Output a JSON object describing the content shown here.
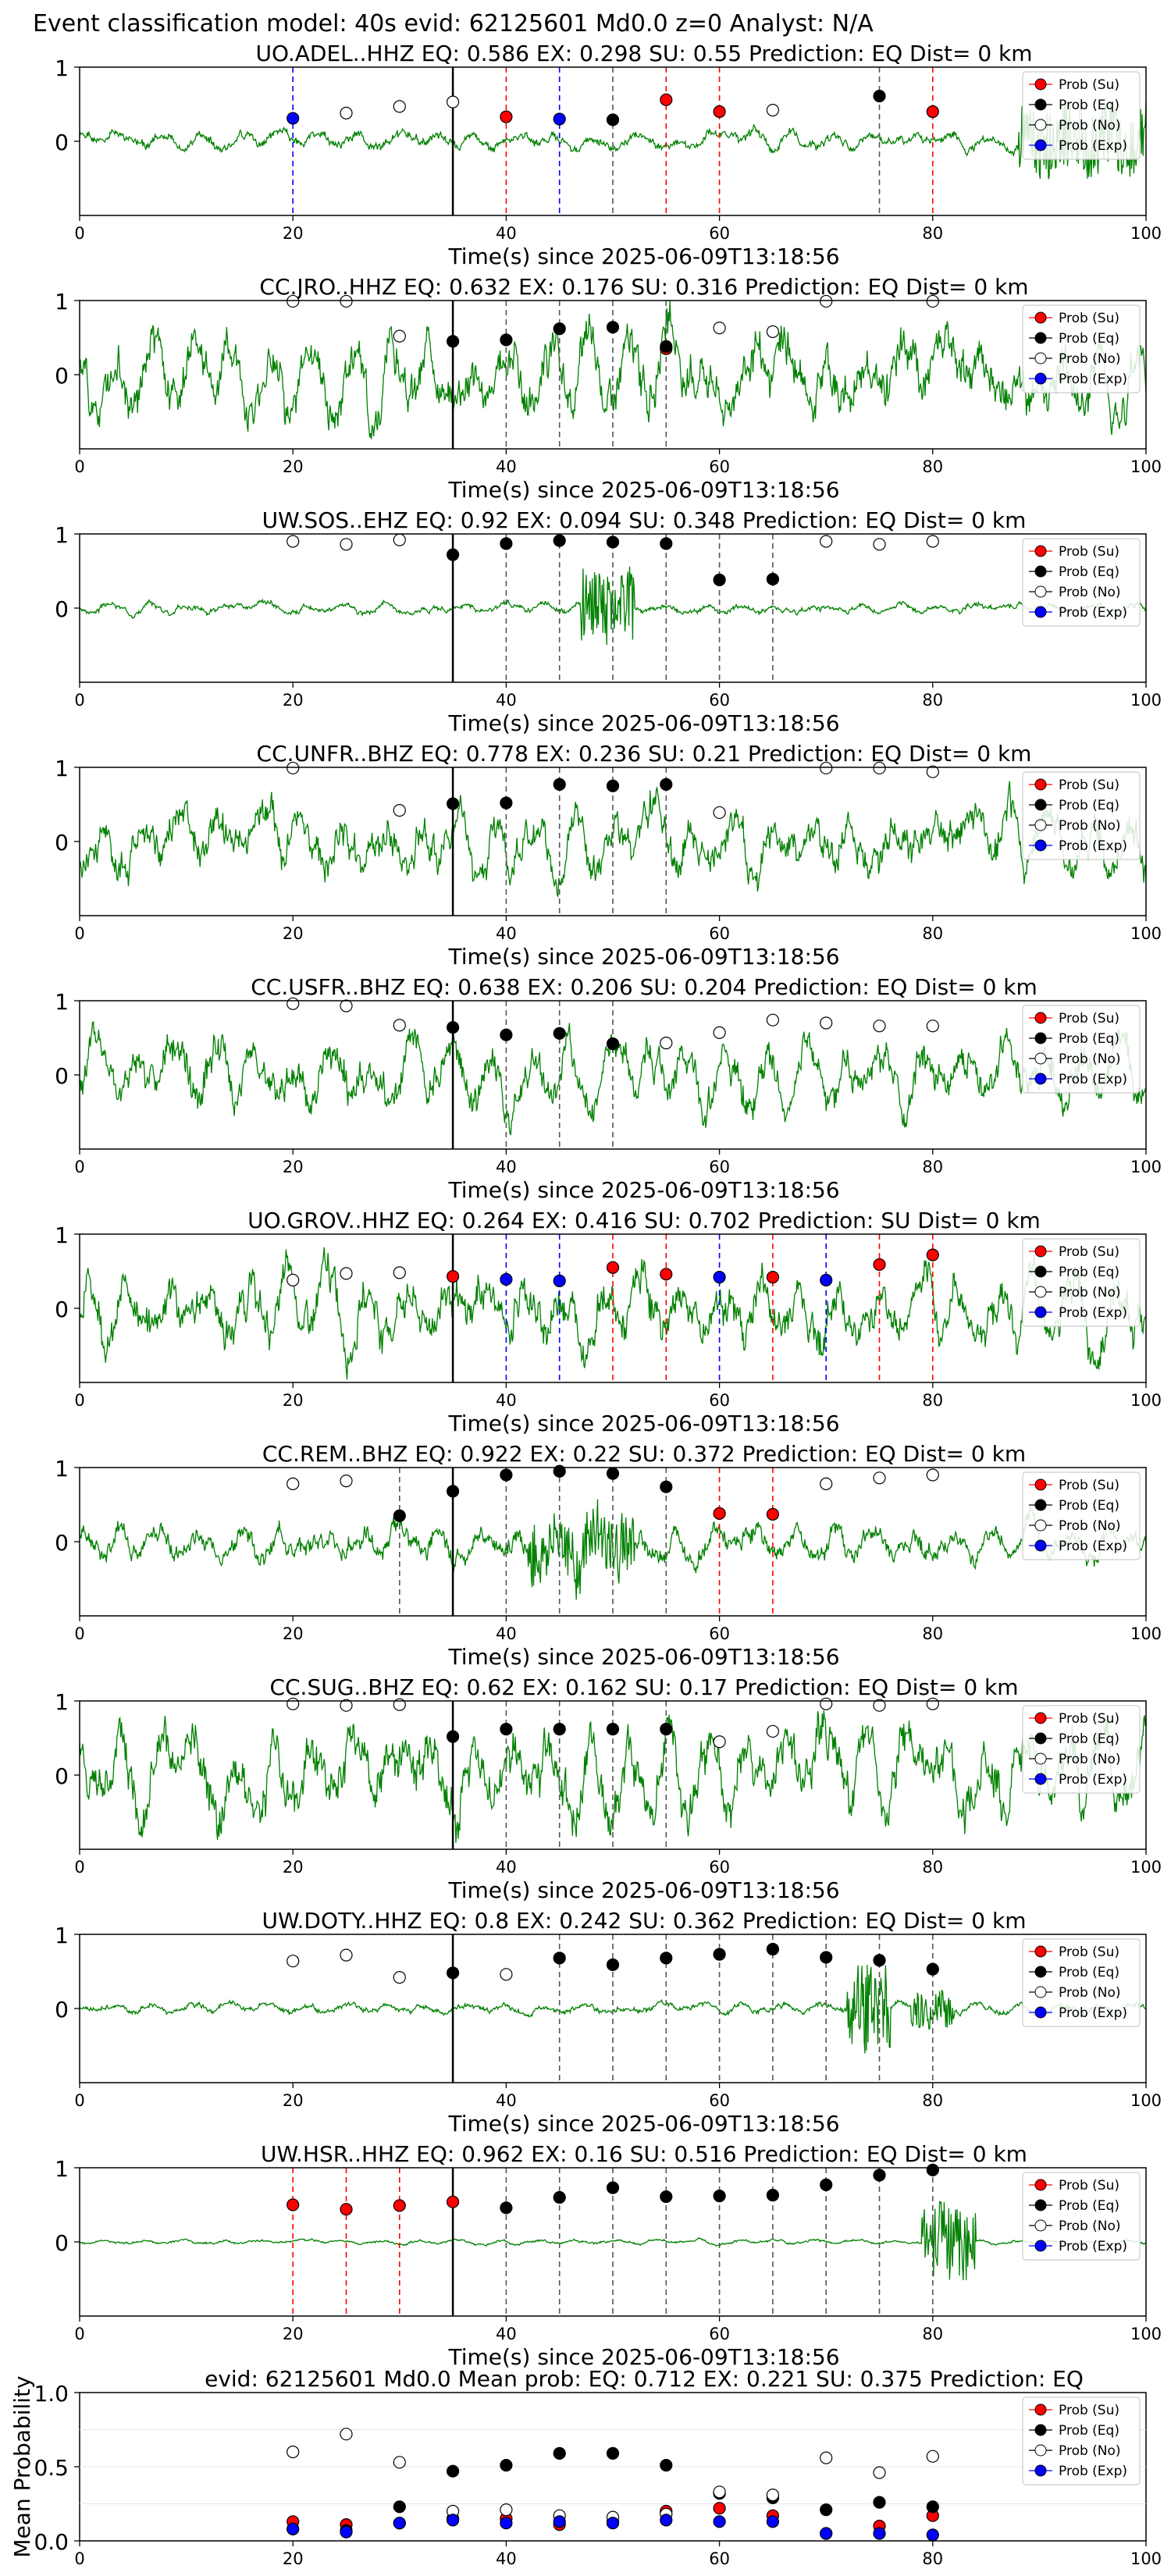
{
  "figure": {
    "suptitle": "Event classification model: 40s evid: 62125601 Md0.0 z=0 Analyst: N/A",
    "xlabel": "Time(s) since 2025-06-09T13:18:56",
    "legend": [
      "Prob (Su)",
      "Prob (Eq)",
      "Prob (No)",
      "Prob (Exp)"
    ],
    "colors": {
      "su": "#ff0000",
      "eq": "#000000",
      "no": "#ffffff",
      "exp": "#0000ff",
      "waveform": "#008000"
    }
  },
  "chart_data": [
    {
      "type": "line",
      "title": "UO.ADEL..HHZ   EQ: 0.586  EX: 0.298  SU: 0.55   Prediction: EQ    Dist= 0 km",
      "xlim": [
        0,
        100
      ],
      "ylim": [
        -1,
        1
      ],
      "xticks": [
        "0",
        "20",
        "40",
        "60",
        "80",
        "100"
      ],
      "yticks": [
        "1",
        "0"
      ],
      "pick_time": 35,
      "amp": 0.12,
      "burst": [
        [
          88,
          100,
          0.45
        ]
      ],
      "seed": 1,
      "points": [
        [
          20,
          "exp",
          0.31
        ],
        [
          25,
          "no",
          0.38
        ],
        [
          30,
          "no",
          0.47
        ],
        [
          35,
          "no",
          0.53
        ],
        [
          40,
          "su",
          0.33
        ],
        [
          45,
          "exp",
          0.3
        ],
        [
          50,
          "eq",
          0.29
        ],
        [
          55,
          "su",
          0.56
        ],
        [
          60,
          "su",
          0.4
        ],
        [
          65,
          "no",
          0.42
        ],
        [
          75,
          "eq",
          0.61
        ],
        [
          80,
          "su",
          0.4
        ]
      ],
      "vlines": [
        [
          20,
          "exp"
        ],
        [
          40,
          "su"
        ],
        [
          45,
          "exp"
        ],
        [
          50,
          "eq"
        ],
        [
          55,
          "su"
        ],
        [
          60,
          "su"
        ],
        [
          75,
          "eq"
        ],
        [
          80,
          "su"
        ]
      ]
    },
    {
      "type": "line",
      "title": "CC.JRO..HHZ   EQ: 0.632  EX: 0.176  SU: 0.316   Prediction: EQ    Dist= 0 km",
      "xlim": [
        0,
        100
      ],
      "ylim": [
        -1,
        1
      ],
      "xticks": [
        "0",
        "20",
        "40",
        "60",
        "80",
        "100"
      ],
      "yticks": [
        "1",
        "0"
      ],
      "pick_time": 35,
      "amp": 0.55,
      "burst": [],
      "seed": 2,
      "points": [
        [
          20,
          "no",
          0.99
        ],
        [
          25,
          "no",
          0.99
        ],
        [
          30,
          "no",
          0.52
        ],
        [
          35,
          "eq",
          0.45
        ],
        [
          40,
          "eq",
          0.47
        ],
        [
          45,
          "eq",
          0.62
        ],
        [
          50,
          "eq",
          0.64
        ],
        [
          55,
          "su",
          0.35
        ],
        [
          55,
          "eq",
          0.38
        ],
        [
          60,
          "no",
          0.63
        ],
        [
          65,
          "no",
          0.58
        ],
        [
          70,
          "no",
          0.99
        ],
        [
          80,
          "no",
          0.99
        ]
      ],
      "vlines": [
        [
          35,
          "eq"
        ],
        [
          40,
          "eq"
        ],
        [
          45,
          "eq"
        ],
        [
          50,
          "eq"
        ],
        [
          55,
          "eq"
        ]
      ]
    },
    {
      "type": "line",
      "title": "UW.SOS..EHZ   EQ: 0.92  EX: 0.094  SU: 0.348   Prediction: EQ    Dist= 0 km",
      "xlim": [
        0,
        100
      ],
      "ylim": [
        -1,
        1
      ],
      "xticks": [
        "0",
        "20",
        "40",
        "60",
        "80",
        "100"
      ],
      "yticks": [
        "1",
        "0"
      ],
      "pick_time": 35,
      "amp": 0.07,
      "burst": [
        [
          47,
          52,
          0.5
        ]
      ],
      "seed": 3,
      "points": [
        [
          20,
          "no",
          0.9
        ],
        [
          25,
          "no",
          0.86
        ],
        [
          30,
          "no",
          0.92
        ],
        [
          35,
          "eq",
          0.72
        ],
        [
          40,
          "eq",
          0.87
        ],
        [
          45,
          "eq",
          0.91
        ],
        [
          50,
          "eq",
          0.89
        ],
        [
          55,
          "eq",
          0.87
        ],
        [
          60,
          "eq",
          0.38
        ],
        [
          65,
          "eq",
          0.39
        ],
        [
          70,
          "no",
          0.9
        ],
        [
          75,
          "no",
          0.86
        ],
        [
          80,
          "no",
          0.9
        ]
      ],
      "vlines": [
        [
          40,
          "eq"
        ],
        [
          45,
          "eq"
        ],
        [
          50,
          "eq"
        ],
        [
          55,
          "eq"
        ],
        [
          60,
          "eq"
        ],
        [
          65,
          "eq"
        ]
      ]
    },
    {
      "type": "line",
      "title": "CC.UNFR..BHZ   EQ: 0.778  EX: 0.236  SU: 0.21   Prediction: EQ    Dist= 0 km",
      "xlim": [
        0,
        100
      ],
      "ylim": [
        -1,
        1
      ],
      "xticks": [
        "0",
        "20",
        "40",
        "60",
        "80",
        "100"
      ],
      "yticks": [
        "1",
        "0"
      ],
      "pick_time": 35,
      "amp": 0.45,
      "burst": [],
      "seed": 4,
      "points": [
        [
          20,
          "no",
          0.99
        ],
        [
          30,
          "no",
          0.42
        ],
        [
          35,
          "eq",
          0.51
        ],
        [
          40,
          "eq",
          0.52
        ],
        [
          45,
          "eq",
          0.77
        ],
        [
          50,
          "eq",
          0.75
        ],
        [
          55,
          "eq",
          0.77
        ],
        [
          60,
          "no",
          0.39
        ],
        [
          70,
          "no",
          0.99
        ],
        [
          75,
          "no",
          0.99
        ],
        [
          80,
          "no",
          0.94
        ]
      ],
      "vlines": [
        [
          35,
          "eq"
        ],
        [
          40,
          "eq"
        ],
        [
          45,
          "eq"
        ],
        [
          50,
          "eq"
        ],
        [
          55,
          "eq"
        ]
      ]
    },
    {
      "type": "line",
      "title": "CC.USFR..BHZ   EQ: 0.638  EX: 0.206  SU: 0.204   Prediction: EQ    Dist= 0 km",
      "xlim": [
        0,
        100
      ],
      "ylim": [
        -1,
        1
      ],
      "xticks": [
        "0",
        "20",
        "40",
        "60",
        "80",
        "100"
      ],
      "yticks": [
        "1",
        "0"
      ],
      "pick_time": 35,
      "amp": 0.45,
      "burst": [],
      "seed": 5,
      "points": [
        [
          20,
          "no",
          0.96
        ],
        [
          25,
          "no",
          0.93
        ],
        [
          30,
          "no",
          0.67
        ],
        [
          35,
          "eq",
          0.64
        ],
        [
          40,
          "eq",
          0.54
        ],
        [
          45,
          "eq",
          0.56
        ],
        [
          50,
          "eq",
          0.42
        ],
        [
          55,
          "no",
          0.43
        ],
        [
          60,
          "no",
          0.57
        ],
        [
          65,
          "no",
          0.74
        ],
        [
          70,
          "no",
          0.7
        ],
        [
          75,
          "no",
          0.66
        ],
        [
          80,
          "no",
          0.66
        ]
      ],
      "vlines": [
        [
          40,
          "eq"
        ],
        [
          45,
          "eq"
        ],
        [
          50,
          "eq"
        ]
      ]
    },
    {
      "type": "line",
      "title": "UO.GROV..HHZ   EQ: 0.264  EX: 0.416  SU: 0.702   Prediction: SU    Dist= 0 km",
      "xlim": [
        0,
        100
      ],
      "ylim": [
        -1,
        1
      ],
      "xticks": [
        "0",
        "20",
        "40",
        "60",
        "80",
        "100"
      ],
      "yticks": [
        "1",
        "0"
      ],
      "pick_time": 35,
      "amp": 0.5,
      "burst": [],
      "seed": 6,
      "points": [
        [
          20,
          "no",
          0.38
        ],
        [
          25,
          "no",
          0.47
        ],
        [
          30,
          "no",
          0.48
        ],
        [
          35,
          "su",
          0.43
        ],
        [
          40,
          "exp",
          0.39
        ],
        [
          45,
          "exp",
          0.37
        ],
        [
          50,
          "su",
          0.55
        ],
        [
          55,
          "su",
          0.46
        ],
        [
          60,
          "exp",
          0.42
        ],
        [
          65,
          "su",
          0.42
        ],
        [
          70,
          "exp",
          0.38
        ],
        [
          75,
          "su",
          0.59
        ],
        [
          80,
          "su",
          0.72
        ]
      ],
      "vlines": [
        [
          40,
          "exp"
        ],
        [
          45,
          "exp"
        ],
        [
          50,
          "su"
        ],
        [
          55,
          "su"
        ],
        [
          60,
          "exp"
        ],
        [
          65,
          "su"
        ],
        [
          70,
          "exp"
        ],
        [
          75,
          "su"
        ],
        [
          80,
          "su"
        ]
      ]
    },
    {
      "type": "line",
      "title": "CC.REM..BHZ   EQ: 0.922  EX: 0.22  SU: 0.372   Prediction: EQ    Dist= 0 km",
      "xlim": [
        0,
        100
      ],
      "ylim": [
        -1,
        1
      ],
      "xticks": [
        "0",
        "20",
        "40",
        "60",
        "80",
        "100"
      ],
      "yticks": [
        "1",
        "0"
      ],
      "pick_time": 35,
      "amp": 0.25,
      "burst": [
        [
          42,
          52,
          0.4
        ]
      ],
      "seed": 7,
      "points": [
        [
          20,
          "no",
          0.78
        ],
        [
          25,
          "no",
          0.82
        ],
        [
          30,
          "eq",
          0.35
        ],
        [
          35,
          "eq",
          0.68
        ],
        [
          40,
          "eq",
          0.9
        ],
        [
          45,
          "eq",
          0.95
        ],
        [
          50,
          "eq",
          0.92
        ],
        [
          55,
          "eq",
          0.74
        ],
        [
          60,
          "su",
          0.38
        ],
        [
          65,
          "su",
          0.37
        ],
        [
          70,
          "no",
          0.78
        ],
        [
          75,
          "no",
          0.86
        ],
        [
          80,
          "no",
          0.9
        ]
      ],
      "vlines": [
        [
          30,
          "eq"
        ],
        [
          40,
          "eq"
        ],
        [
          45,
          "eq"
        ],
        [
          50,
          "eq"
        ],
        [
          55,
          "eq"
        ],
        [
          60,
          "su"
        ],
        [
          65,
          "su"
        ]
      ]
    },
    {
      "type": "line",
      "title": "CC.SUG..BHZ   EQ: 0.62  EX: 0.162  SU: 0.17   Prediction: EQ    Dist= 0 km",
      "xlim": [
        0,
        100
      ],
      "ylim": [
        -1,
        1
      ],
      "xticks": [
        "0",
        "20",
        "40",
        "60",
        "80",
        "100"
      ],
      "yticks": [
        "1",
        "0"
      ],
      "pick_time": 35,
      "amp": 0.6,
      "burst": [],
      "seed": 8,
      "points": [
        [
          20,
          "no",
          0.96
        ],
        [
          25,
          "no",
          0.94
        ],
        [
          30,
          "no",
          0.95
        ],
        [
          35,
          "eq",
          0.52
        ],
        [
          40,
          "eq",
          0.62
        ],
        [
          45,
          "eq",
          0.62
        ],
        [
          50,
          "eq",
          0.62
        ],
        [
          55,
          "eq",
          0.62
        ],
        [
          60,
          "no",
          0.45
        ],
        [
          65,
          "no",
          0.59
        ],
        [
          70,
          "no",
          0.96
        ],
        [
          75,
          "no",
          0.94
        ],
        [
          80,
          "no",
          0.96
        ]
      ],
      "vlines": [
        [
          40,
          "eq"
        ],
        [
          45,
          "eq"
        ],
        [
          50,
          "eq"
        ],
        [
          55,
          "eq"
        ]
      ]
    },
    {
      "type": "line",
      "title": "UW.DOTY..HHZ   EQ: 0.8  EX: 0.242  SU: 0.362   Prediction: EQ    Dist= 0 km",
      "xlim": [
        0,
        100
      ],
      "ylim": [
        -1,
        1
      ],
      "xticks": [
        "0",
        "20",
        "40",
        "60",
        "80",
        "100"
      ],
      "yticks": [
        "1",
        "0"
      ],
      "pick_time": 35,
      "amp": 0.07,
      "burst": [
        [
          72,
          76,
          0.6
        ],
        [
          78,
          82,
          0.25
        ]
      ],
      "seed": 9,
      "points": [
        [
          20,
          "no",
          0.64
        ],
        [
          25,
          "no",
          0.72
        ],
        [
          30,
          "no",
          0.42
        ],
        [
          35,
          "eq",
          0.48
        ],
        [
          40,
          "no",
          0.46
        ],
        [
          45,
          "eq",
          0.68
        ],
        [
          50,
          "eq",
          0.59
        ],
        [
          55,
          "eq",
          0.68
        ],
        [
          60,
          "eq",
          0.73
        ],
        [
          65,
          "eq",
          0.8
        ],
        [
          70,
          "eq",
          0.69
        ],
        [
          75,
          "eq",
          0.65
        ],
        [
          80,
          "eq",
          0.53
        ]
      ],
      "vlines": [
        [
          45,
          "eq"
        ],
        [
          50,
          "eq"
        ],
        [
          55,
          "eq"
        ],
        [
          60,
          "eq"
        ],
        [
          65,
          "eq"
        ],
        [
          70,
          "eq"
        ],
        [
          75,
          "eq"
        ],
        [
          80,
          "eq"
        ]
      ]
    },
    {
      "type": "line",
      "title": "UW.HSR..HHZ   EQ: 0.962  EX: 0.16  SU: 0.516   Prediction: EQ    Dist= 0 km",
      "xlim": [
        0,
        100
      ],
      "ylim": [
        -1,
        1
      ],
      "xticks": [
        "0",
        "20",
        "40",
        "60",
        "80",
        "100"
      ],
      "yticks": [
        "1",
        "0"
      ],
      "pick_time": 35,
      "amp": 0.03,
      "burst": [
        [
          79,
          84,
          0.55
        ]
      ],
      "seed": 10,
      "points": [
        [
          20,
          "su",
          0.5
        ],
        [
          25,
          "su",
          0.44
        ],
        [
          30,
          "su",
          0.49
        ],
        [
          35,
          "su",
          0.54
        ],
        [
          40,
          "eq",
          0.46
        ],
        [
          45,
          "eq",
          0.6
        ],
        [
          50,
          "eq",
          0.73
        ],
        [
          55,
          "eq",
          0.61
        ],
        [
          60,
          "eq",
          0.62
        ],
        [
          65,
          "eq",
          0.63
        ],
        [
          70,
          "eq",
          0.77
        ],
        [
          75,
          "eq",
          0.9
        ],
        [
          80,
          "eq",
          0.97
        ]
      ],
      "vlines": [
        [
          20,
          "su"
        ],
        [
          25,
          "su"
        ],
        [
          30,
          "su"
        ],
        [
          40,
          "eq"
        ],
        [
          45,
          "eq"
        ],
        [
          50,
          "eq"
        ],
        [
          55,
          "eq"
        ],
        [
          60,
          "eq"
        ],
        [
          65,
          "eq"
        ],
        [
          70,
          "eq"
        ],
        [
          75,
          "eq"
        ],
        [
          80,
          "eq"
        ]
      ]
    },
    {
      "type": "scatter",
      "title": "evid: 62125601   Md0.0   Mean prob:   EQ: 0.712  EX: 0.221  SU: 0.375   Prediction: EQ",
      "ylabel": "Mean Probability",
      "xlim": [
        0,
        100
      ],
      "ylim": [
        0,
        1
      ],
      "xticks": [
        "0",
        "20",
        "40",
        "60",
        "80",
        "100"
      ],
      "yticks": [
        "1.0",
        "0.5",
        "0.0"
      ],
      "x": [
        20,
        25,
        30,
        35,
        40,
        45,
        50,
        55,
        60,
        65,
        70,
        75,
        80
      ],
      "series": [
        {
          "name": "Prob (Su)",
          "key": "su",
          "values": [
            0.13,
            0.11,
            0.12,
            0.15,
            0.15,
            0.11,
            0.13,
            0.2,
            0.22,
            0.17,
            0.05,
            0.1,
            0.17
          ]
        },
        {
          "name": "Prob (Eq)",
          "key": "eq",
          "values": [
            0.08,
            0.07,
            0.23,
            0.47,
            0.51,
            0.59,
            0.59,
            0.51,
            0.32,
            0.29,
            0.21,
            0.26,
            0.23
          ]
        },
        {
          "name": "Prob (No)",
          "key": "no",
          "values": [
            0.6,
            0.72,
            0.53,
            0.2,
            0.21,
            0.17,
            0.16,
            0.18,
            0.33,
            0.31,
            0.56,
            0.46,
            0.57
          ]
        },
        {
          "name": "Prob (Exp)",
          "key": "exp",
          "values": [
            0.08,
            0.06,
            0.12,
            0.14,
            0.12,
            0.13,
            0.12,
            0.14,
            0.13,
            0.13,
            0.05,
            0.05,
            0.04
          ]
        }
      ]
    }
  ]
}
